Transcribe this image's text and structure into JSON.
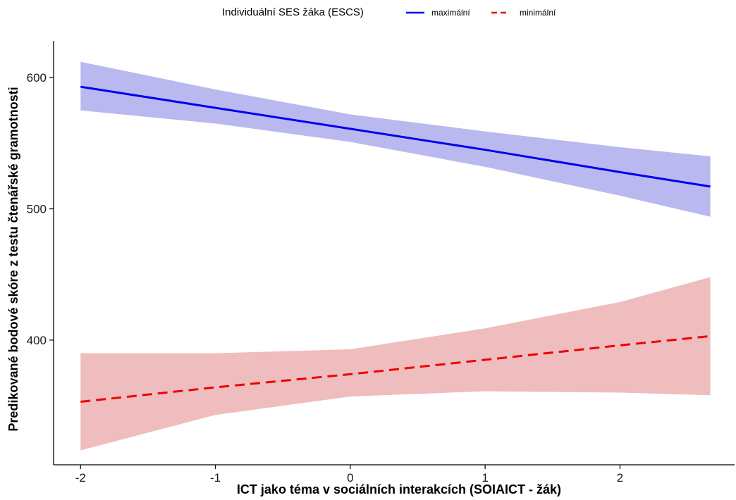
{
  "chart_data": {
    "type": "line",
    "xlabel": "ICT jako téma v sociálních interakcích (SOIAICT - žák)",
    "ylabel": "Predikované bodové skóre z testu čtenářské gramotnosti",
    "xlim": [
      -2.2,
      2.85
    ],
    "ylim": [
      305,
      628
    ],
    "x_ticks": [
      -2,
      -1,
      0,
      1,
      2
    ],
    "y_ticks": [
      400,
      500,
      600
    ],
    "grid": false,
    "legend": {
      "title": "Individuální SES žáka  (ESCS)",
      "position": "top"
    },
    "series": [
      {
        "name": "maximální",
        "color": "#0000ee",
        "ribbon_color": "#b9b9ef",
        "line_style": "solid",
        "x": [
          -2,
          -1,
          0,
          1,
          2,
          2.67
        ],
        "y": [
          593,
          577,
          561,
          545,
          528,
          517
        ],
        "lower": [
          575,
          565,
          551,
          532,
          510,
          494
        ],
        "upper": [
          612,
          591,
          572,
          559,
          547,
          540
        ]
      },
      {
        "name": "minimální",
        "color": "#ee0000",
        "ribbon_color": "#efbdbd",
        "line_style": "dashed",
        "x": [
          -2,
          -1,
          0,
          1,
          2,
          2.67
        ],
        "y": [
          353,
          364,
          374,
          385,
          396,
          403
        ],
        "lower": [
          316,
          343,
          357,
          361,
          360,
          358
        ],
        "upper": [
          390,
          390,
          393,
          409,
          429,
          448
        ]
      }
    ]
  }
}
